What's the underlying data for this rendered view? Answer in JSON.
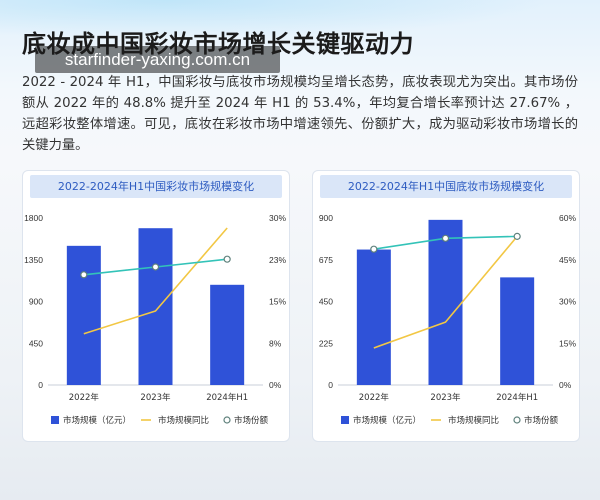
{
  "watermark": "starfinder-yaxing.com.cn",
  "title": "底妆成中国彩妆市场增长关键驱动力",
  "paragraph": "2022 - 2024 年 H1，中国彩妆与底妆市场规模均呈增长态势，底妆表现尤为突出。其市场份额从 2022 年的 48.8% 提升至 2024 年 H1 的 53.4%，年均复合增长率预计达 27.67% ，远超彩妆整体增速。可见，底妆在彩妆市场中增速领先、份额扩大，成为驱动彩妆市场增长的关键力量。",
  "chart_data": [
    {
      "type": "bar",
      "title": "2022-2024年H1中国彩妆市场规模变化",
      "categories": [
        "2022年",
        "2023年",
        "2024年H1"
      ],
      "y_left": {
        "range": [
          0,
          1800
        ],
        "ticks": [
          "0",
          "450",
          "900",
          "1350",
          "1800"
        ]
      },
      "y_right": {
        "range": [
          0,
          30
        ],
        "ticks": [
          "0%",
          "8%",
          "15%",
          "23%",
          "30%"
        ]
      },
      "grid": false,
      "legend_position": "bottom",
      "series": [
        {
          "name": "市场规模（亿元）",
          "type": "bar",
          "axis": "left",
          "color": "#2f52d8",
          "values": [
            1500,
            1690,
            1080
          ]
        },
        {
          "name": "市场规模同比",
          "type": "line",
          "axis": "right",
          "color": "#f2c744",
          "values": [
            9.2,
            13.3,
            28.2
          ]
        },
        {
          "name": "市场份额",
          "type": "line",
          "axis": "right",
          "marker": "circle",
          "color": "#33c3b8",
          "values": [
            19.8,
            21.2,
            22.6
          ]
        }
      ]
    },
    {
      "type": "bar",
      "title": "2022-2024年H1中国底妆市场规模变化",
      "categories": [
        "2022年",
        "2023年",
        "2024年H1"
      ],
      "y_left": {
        "range": [
          0,
          900
        ],
        "ticks": [
          "0",
          "225",
          "450",
          "675",
          "900"
        ]
      },
      "y_right": {
        "range": [
          0,
          60
        ],
        "ticks": [
          "0%",
          "15%",
          "30%",
          "45%",
          "60%"
        ]
      },
      "grid": false,
      "legend_position": "bottom",
      "series": [
        {
          "name": "市场规模（亿元）",
          "type": "bar",
          "axis": "left",
          "color": "#2f52d8",
          "values": [
            730,
            890,
            580
          ]
        },
        {
          "name": "市场规模同比",
          "type": "line",
          "axis": "right",
          "color": "#f2c744",
          "values": [
            13.3,
            22.6,
            53.4
          ]
        },
        {
          "name": "市场份额",
          "type": "line",
          "axis": "right",
          "marker": "circle",
          "color": "#33c3b8",
          "values": [
            48.8,
            52.7,
            53.4
          ]
        }
      ]
    }
  ]
}
